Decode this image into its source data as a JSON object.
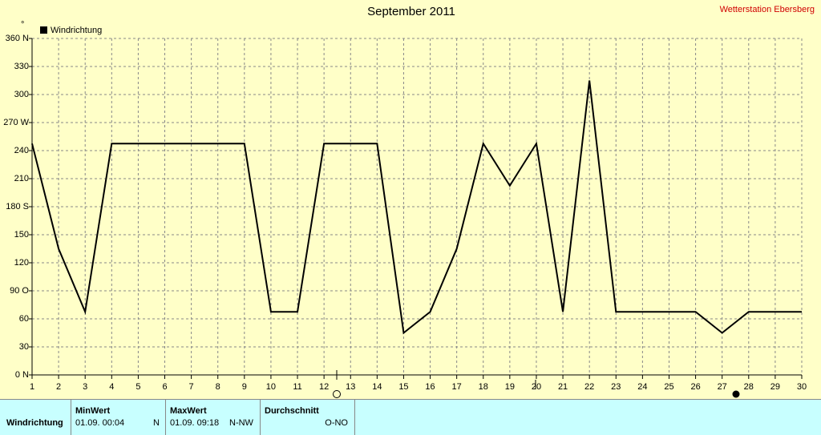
{
  "chart_data": {
    "type": "line",
    "title": "September 2011",
    "y_label": "°",
    "x": [
      1,
      2,
      3,
      4,
      5,
      6,
      7,
      8,
      9,
      10,
      11,
      12,
      13,
      14,
      15,
      16,
      17,
      18,
      19,
      20,
      21,
      22,
      23,
      24,
      25,
      26,
      27,
      28,
      29,
      30
    ],
    "series": [
      {
        "name": "Windrichtung",
        "color": "#000000",
        "values": [
          247.5,
          135,
          67.5,
          247.5,
          247.5,
          247.5,
          247.5,
          247.5,
          247.5,
          67.5,
          67.5,
          247.5,
          247.5,
          247.5,
          45,
          67.5,
          135,
          247.5,
          202.5,
          247.5,
          67.5,
          315,
          67.5,
          67.5,
          67.5,
          67.5,
          45,
          67.5,
          67.5,
          67.5
        ]
      }
    ],
    "xlim": [
      1,
      30
    ],
    "xticks": [
      1,
      2,
      3,
      4,
      5,
      6,
      7,
      8,
      9,
      10,
      11,
      12,
      13,
      14,
      15,
      16,
      17,
      18,
      19,
      20,
      21,
      22,
      23,
      24,
      25,
      26,
      27,
      28,
      29,
      30
    ],
    "ylim": [
      0,
      360
    ],
    "yticks": [
      {
        "value": 0,
        "label": "0  N"
      },
      30,
      60,
      {
        "value": 90,
        "label": "90  O"
      },
      120,
      150,
      {
        "value": 180,
        "label": "180 S"
      },
      210,
      240,
      {
        "value": 270,
        "label": "270 W"
      },
      300,
      330,
      {
        "value": 360,
        "label": "360 N"
      }
    ],
    "grid": true,
    "legend": "top-left",
    "background": "#ffffc8"
  },
  "header": {
    "station": "Wetterstation Ebersberg"
  },
  "stats": {
    "row_label": "Windrichtung",
    "min": {
      "header": "MinWert",
      "date": "01.09.  00:04",
      "dir": "N"
    },
    "max": {
      "header": "MaxWert",
      "date": "01.09.  09:18",
      "dir": "N-NW"
    },
    "avg": {
      "header": "Durchschnitt",
      "dir": "O-NO"
    }
  }
}
